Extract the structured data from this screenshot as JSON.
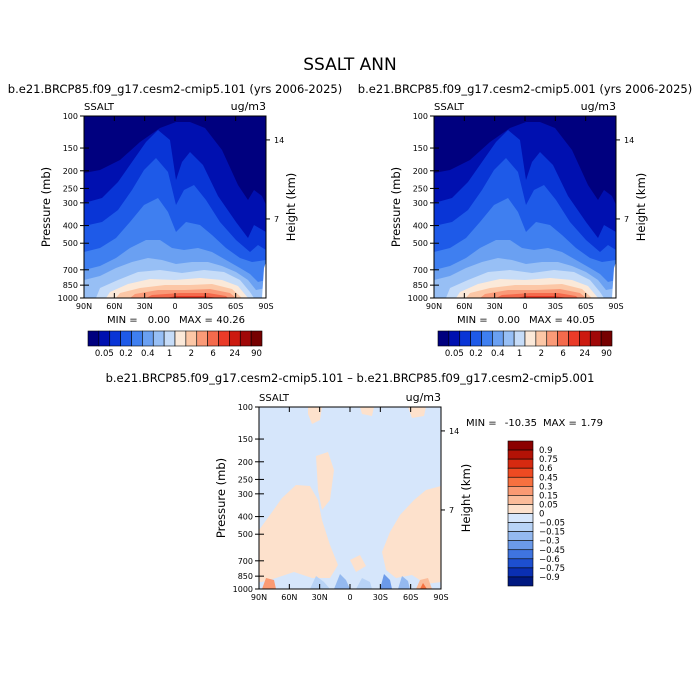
{
  "figure": {
    "title": "SSALT ANN"
  },
  "chart_data": [
    {
      "type": "heatmap",
      "title": "b.e21.BRCP85.f09_g17.cesm2-cmip5.101 (yrs 2006-2025)",
      "variable": "SSALT",
      "units": "ug/m3",
      "xlabel": "",
      "ylabel": "Pressure (mb)",
      "y2label": "Height (km)",
      "x_ticks": [
        "90N",
        "60N",
        "30N",
        "0",
        "30S",
        "60S",
        "90S"
      ],
      "y_ticks": [
        100,
        150,
        200,
        250,
        300,
        400,
        500,
        700,
        850,
        1000
      ],
      "y_scale": "log",
      "ylim": [
        1000,
        100
      ],
      "y2_ticks": [
        7,
        14
      ],
      "stats": {
        "min_label": "MIN =",
        "min": "0.00",
        "max_label": "MAX =",
        "max": "40.26"
      }
    },
    {
      "type": "heatmap",
      "title": "b.e21.BRCP85.f09_g17.cesm2-cmip5.001 (yrs 2006-2025)",
      "variable": "SSALT",
      "units": "ug/m3",
      "xlabel": "",
      "ylabel": "Pressure (mb)",
      "y2label": "Height (km)",
      "x_ticks": [
        "90N",
        "60N",
        "30N",
        "0",
        "30S",
        "60S",
        "90S"
      ],
      "y_ticks": [
        100,
        150,
        200,
        250,
        300,
        400,
        500,
        700,
        850,
        1000
      ],
      "y_scale": "log",
      "ylim": [
        1000,
        100
      ],
      "y2_ticks": [
        7,
        14
      ],
      "stats": {
        "min_label": "MIN =",
        "min": "0.00",
        "max_label": "MAX =",
        "max": "40.05"
      }
    },
    {
      "type": "heatmap",
      "title": "b.e21.BRCP85.f09_g17.cesm2-cmip5.101 – b.e21.BRCP85.f09_g17.cesm2-cmip5.001",
      "variable": "SSALT",
      "units": "ug/m3",
      "xlabel": "",
      "ylabel": "Pressure (mb)",
      "y2label": "Height (km)",
      "x_ticks": [
        "90N",
        "60N",
        "30N",
        "0",
        "30S",
        "60S",
        "90S"
      ],
      "y_ticks": [
        100,
        150,
        200,
        250,
        300,
        400,
        500,
        700,
        850,
        1000
      ],
      "y_scale": "log",
      "ylim": [
        1000,
        100
      ],
      "y2_ticks": [
        7,
        14
      ],
      "stats": {
        "min_label": "MIN =",
        "min": "-10.35",
        "max_label": "MAX =",
        "max": "1.79"
      }
    }
  ],
  "colorbars": {
    "field": {
      "orientation": "horizontal",
      "labels": [
        "0.05",
        "0.2",
        "0.4",
        "1",
        "2",
        "6",
        "24",
        "90"
      ],
      "colors": [
        "#00007f",
        "#0010b0",
        "#0935d6",
        "#1e5ae8",
        "#3f7ff0",
        "#6aa0f2",
        "#97bff5",
        "#c6dcf8",
        "#fbe9d9",
        "#fcc7a6",
        "#fa9a78",
        "#f56a4c",
        "#ea3b28",
        "#cc1a10",
        "#a00808",
        "#760000"
      ]
    },
    "diff": {
      "orientation": "vertical",
      "labels": [
        "0.9",
        "0.75",
        "0.6",
        "0.45",
        "0.3",
        "0.15",
        "0.05",
        "0",
        "−0.05",
        "−0.15",
        "−0.3",
        "−0.45",
        "−0.6",
        "−0.75",
        "−0.9"
      ],
      "colors": [
        "#8b0000",
        "#b31206",
        "#d62a10",
        "#ee4a22",
        "#f7703f",
        "#fa9a73",
        "#fbbc9a",
        "#fde1cc",
        "#d6e6fb",
        "#b8d3f6",
        "#94b9f0",
        "#6b9aea",
        "#3f74e0",
        "#1d4fd0",
        "#0a2fb2",
        "#001880"
      ]
    }
  }
}
